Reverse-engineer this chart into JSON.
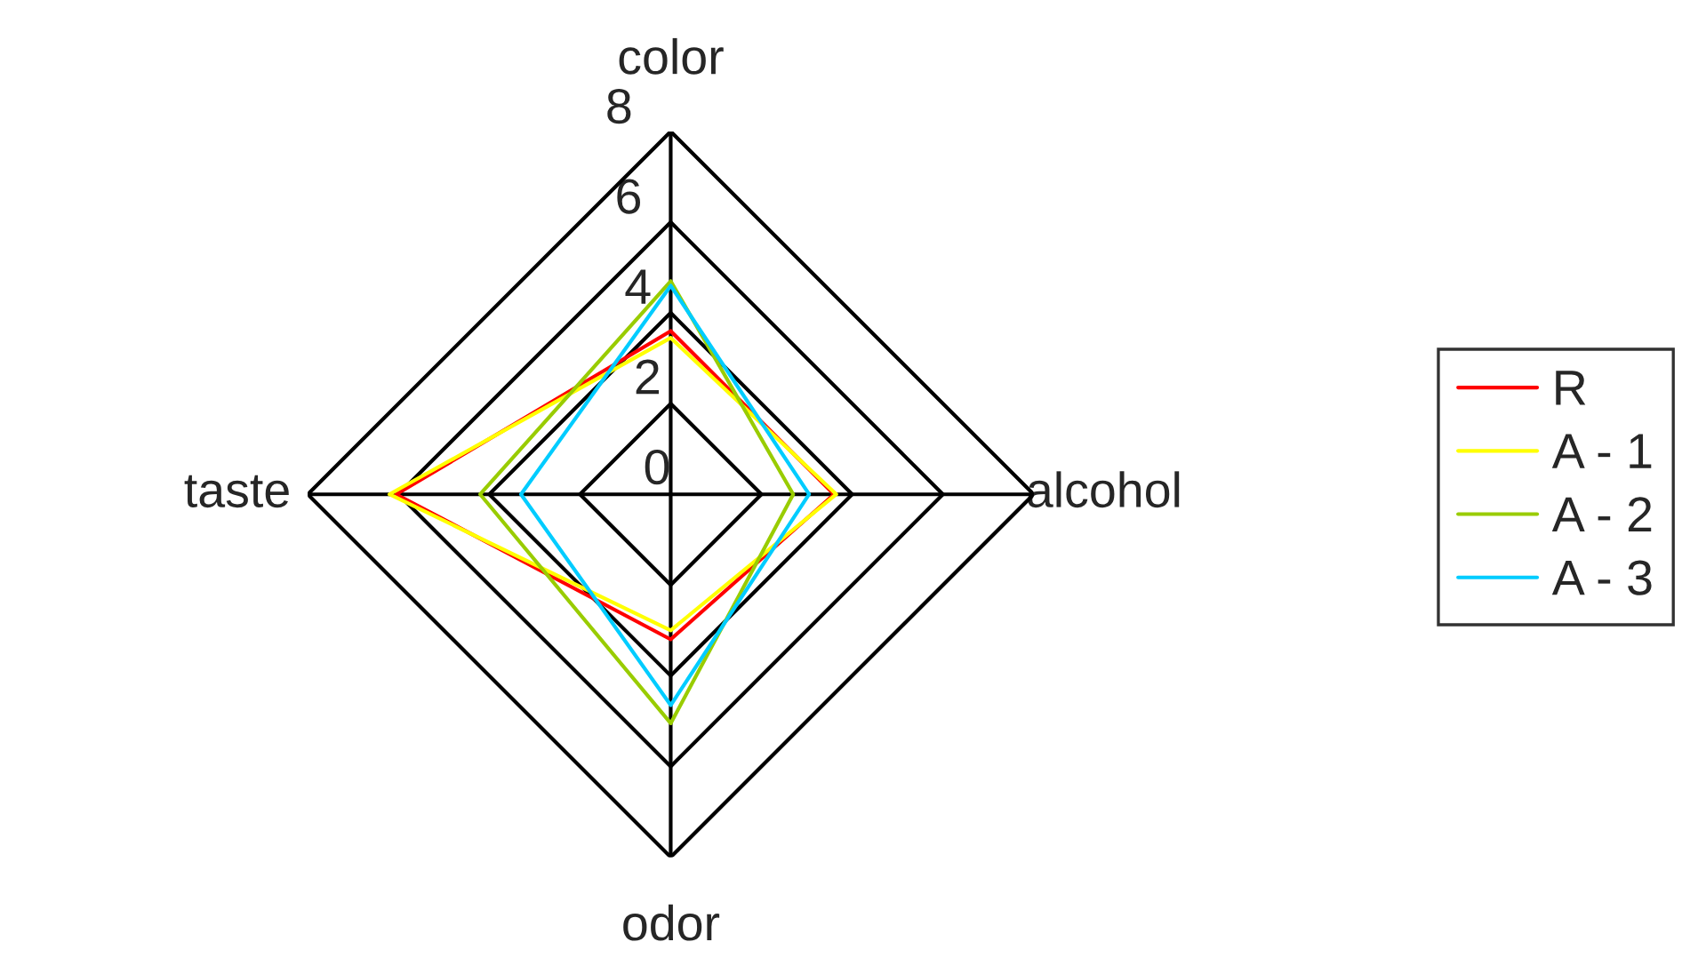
{
  "chart_data": {
    "type": "radar",
    "categories": [
      "color",
      "alcohol",
      "odor",
      "taste"
    ],
    "series": [
      {
        "name": "R",
        "color": "#ff0000",
        "values": [
          3.6,
          3.6,
          3.2,
          6.05
        ]
      },
      {
        "name": "A - 1",
        "color": "#ffff00",
        "values": [
          3.45,
          3.65,
          3.0,
          6.2
        ]
      },
      {
        "name": "A - 2",
        "color": "#99cc00",
        "values": [
          4.7,
          2.7,
          5.05,
          4.2
        ]
      },
      {
        "name": "A - 3",
        "color": "#00ccff",
        "values": [
          4.6,
          3.05,
          4.65,
          3.3
        ]
      }
    ],
    "ylim": [
      0,
      8
    ],
    "yticks": [
      0,
      2,
      4,
      6,
      8
    ],
    "grid": true,
    "legend": "right",
    "marker": "none",
    "line_style": "solid"
  }
}
